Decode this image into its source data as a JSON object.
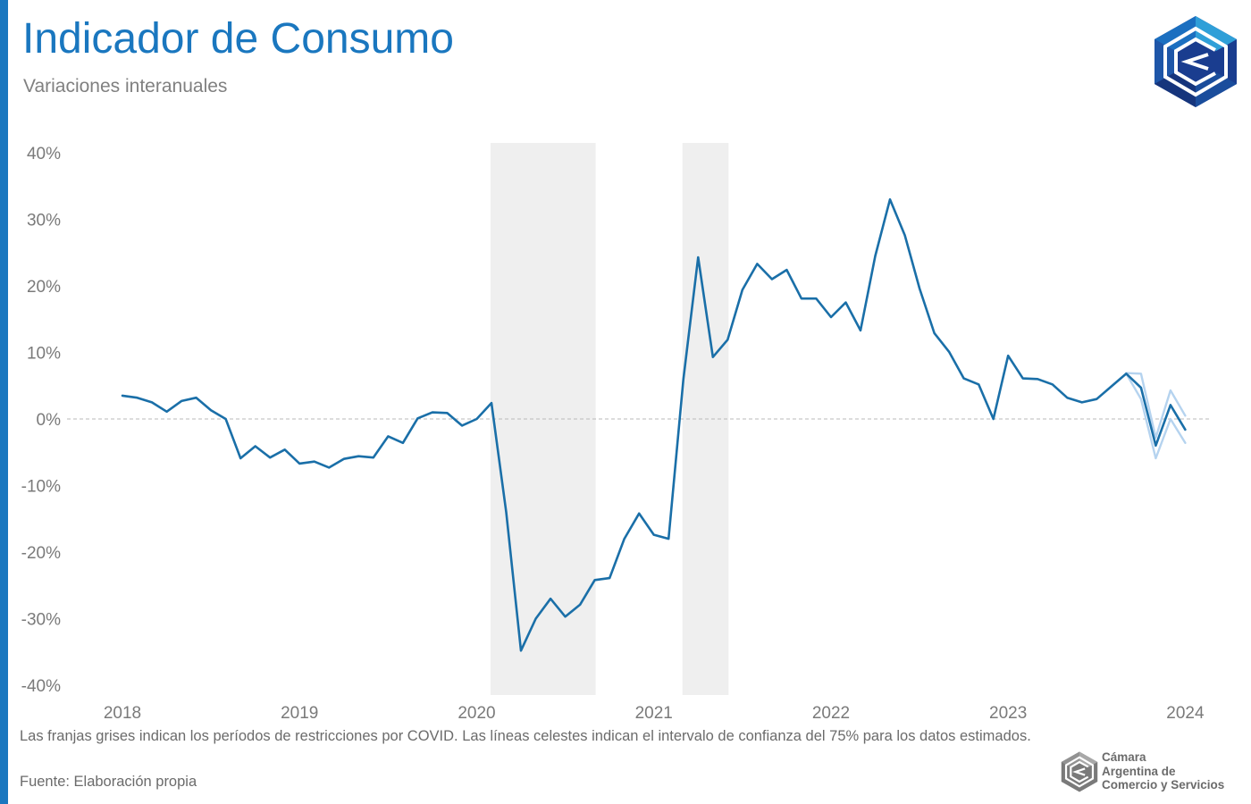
{
  "header": {
    "title": "Indicador de Consumo",
    "subtitle": "Variaciones interanuales"
  },
  "colors": {
    "accent": "#1a77bf",
    "series_main": "#1a6fa8",
    "confidence": "#b5d3ef",
    "shading": "#efefef"
  },
  "chart_data": {
    "type": "line",
    "title": "Indicador de Consumo",
    "subtitle": "Variaciones interanuales",
    "y_unit": "%",
    "ylim": [
      -40,
      40
    ],
    "y_ticks": [
      40,
      30,
      20,
      10,
      0,
      -10,
      -20,
      -30,
      -40
    ],
    "y_tick_labels": [
      "40%",
      "30%",
      "20%",
      "10%",
      "0%",
      "-10%",
      "-20%",
      "-30%",
      "-40%"
    ],
    "x_tick_labels": [
      "2018",
      "2019",
      "2020",
      "2021",
      "2022",
      "2023",
      "2024"
    ],
    "x_range": [
      "2018-01",
      "2024-01"
    ],
    "zero_line": "dashed",
    "grid": false,
    "shaded_periods": [
      {
        "start": "2020-02",
        "end": "2020-09"
      },
      {
        "start": "2021-03",
        "end": "2021-06"
      }
    ],
    "series": [
      {
        "role": "main",
        "x": [
          "2018-01",
          "2018-02",
          "2018-03",
          "2018-04",
          "2018-05",
          "2018-06",
          "2018-07",
          "2018-08",
          "2018-09",
          "2018-10",
          "2018-11",
          "2018-12",
          "2019-01",
          "2019-02",
          "2019-03",
          "2019-04",
          "2019-05",
          "2019-06",
          "2019-07",
          "2019-08",
          "2019-09",
          "2019-10",
          "2019-11",
          "2019-12",
          "2020-01",
          "2020-02",
          "2020-03",
          "2020-04",
          "2020-05",
          "2020-06",
          "2020-07",
          "2020-08",
          "2020-09",
          "2020-10",
          "2020-11",
          "2020-12",
          "2021-01",
          "2021-02",
          "2021-03",
          "2021-04",
          "2021-05",
          "2021-06",
          "2021-07",
          "2021-08",
          "2021-09",
          "2021-10",
          "2021-11",
          "2021-12",
          "2022-01",
          "2022-02",
          "2022-03",
          "2022-04",
          "2022-05",
          "2022-06",
          "2022-07",
          "2022-08",
          "2022-09",
          "2022-10",
          "2022-11",
          "2022-12",
          "2023-01",
          "2023-02",
          "2023-03",
          "2023-04",
          "2023-05",
          "2023-06",
          "2023-07",
          "2023-08",
          "2023-09",
          "2023-10",
          "2023-11",
          "2023-12",
          "2024-01"
        ],
        "y": [
          3.5,
          3.2,
          2.5,
          1.1,
          2.7,
          3.2,
          1.3,
          0.0,
          -5.9,
          -4.1,
          -5.8,
          -4.6,
          -6.7,
          -6.4,
          -7.3,
          -6.0,
          -5.6,
          -5.8,
          -2.6,
          -3.6,
          0.1,
          1.0,
          0.9,
          -1.0,
          0.0,
          2.4,
          -14.0,
          -34.8,
          -30.0,
          -27.0,
          -29.7,
          -27.9,
          -24.2,
          -23.9,
          -18.0,
          -14.2,
          -17.4,
          -18.0,
          6.0,
          24.3,
          9.3,
          11.9,
          19.4,
          23.3,
          21.0,
          22.4,
          18.1,
          18.1,
          15.3,
          17.5,
          13.3,
          24.5,
          33.0,
          27.6,
          19.6,
          12.9,
          10.1,
          6.1,
          5.2,
          0.0,
          9.5,
          6.1,
          6.0,
          5.2,
          3.2,
          2.5,
          3.0,
          4.9,
          6.8,
          4.7,
          -4.0,
          2.1,
          -1.6
        ]
      },
      {
        "role": "confidence_upper",
        "x": [
          "2023-09",
          "2023-10",
          "2023-11",
          "2023-12",
          "2024-01"
        ],
        "y": [
          6.9,
          6.8,
          -2.8,
          4.3,
          0.5
        ]
      },
      {
        "role": "confidence_lower",
        "x": [
          "2023-09",
          "2023-10",
          "2023-11",
          "2023-12",
          "2024-01"
        ],
        "y": [
          6.8,
          3.0,
          -5.9,
          0.0,
          -3.6
        ]
      }
    ]
  },
  "footer": {
    "note": "Las franjas grises indican los períodos de restricciones por COVID. Las líneas celestes indican el intervalo de confianza del 75% para los datos estimados.",
    "source": "Fuente: Elaboración propia",
    "org_line1": "Cámara",
    "org_line2": "Argentina de",
    "org_line3": "Comercio y Servicios"
  },
  "logos": {
    "main_icon": "cac-hexagon-logo-icon",
    "footer_icon": "cac-hexagon-logo-gray-icon"
  }
}
